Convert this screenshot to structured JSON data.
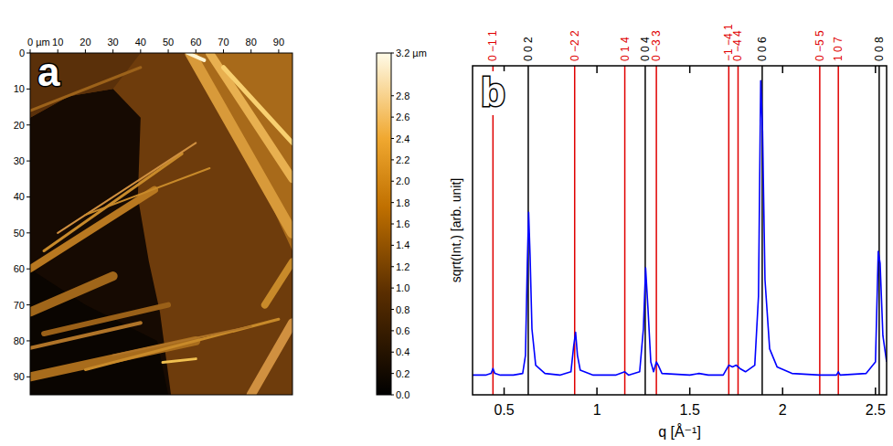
{
  "chart_data": [
    {
      "type": "image",
      "panel": "a",
      "xlim": [
        0,
        95
      ],
      "ylim": [
        0,
        95
      ],
      "xticks": [
        {
          "value": 0,
          "label": "0 µm"
        },
        10,
        20,
        30,
        40,
        50,
        60,
        70,
        80,
        90
      ],
      "yticks": [
        0,
        10,
        20,
        30,
        40,
        50,
        60,
        70,
        80,
        90
      ],
      "colorbar": {
        "range": [
          0,
          3.2
        ],
        "ticks": [
          {
            "value": 3.2,
            "label": "3.2 µm"
          },
          2.8,
          2.6,
          2.4,
          2.2,
          {
            "value": 2,
            "label": "2.0"
          },
          1.8,
          1.6,
          1.4,
          1.2,
          {
            "value": 1,
            "label": "1.0"
          },
          0.8,
          0.6,
          0.4,
          0.2,
          {
            "value": 0,
            "label": "0.0"
          }
        ]
      }
    },
    {
      "type": "line",
      "panel": "b",
      "x_label": "q [Å⁻¹]",
      "y_label": "sqrt(Int.) [arb. unit]",
      "xlim": [
        0.33,
        2.56
      ],
      "ylim": [
        0,
        1
      ],
      "xticks": [
        0.5,
        1,
        1.5,
        2,
        2.5
      ],
      "tick_labels": "x",
      "x": [
        0.33,
        0.4,
        0.43,
        0.44,
        0.45,
        0.48,
        0.55,
        0.6,
        0.615,
        0.625,
        0.632,
        0.64,
        0.65,
        0.67,
        0.72,
        0.8,
        0.86,
        0.875,
        0.885,
        0.895,
        0.91,
        0.98,
        1.1,
        1.15,
        1.17,
        1.23,
        1.25,
        1.262,
        1.275,
        1.29,
        1.305,
        1.32,
        1.33,
        1.35,
        1.5,
        1.55,
        1.6,
        1.68,
        1.71,
        1.73,
        1.75,
        1.77,
        1.8,
        1.85,
        1.87,
        1.882,
        1.892,
        1.905,
        1.93,
        1.97,
        2.05,
        2.2,
        2.29,
        2.3,
        2.31,
        2.45,
        2.5,
        2.515,
        2.525,
        2.54,
        2.56
      ],
      "series": [
        {
          "color": "#0000ff",
          "values": [
            0.06,
            0.06,
            0.065,
            0.08,
            0.065,
            0.06,
            0.06,
            0.065,
            0.12,
            0.4,
            0.555,
            0.42,
            0.2,
            0.09,
            0.065,
            0.06,
            0.07,
            0.15,
            0.19,
            0.12,
            0.075,
            0.06,
            0.06,
            0.07,
            0.06,
            0.07,
            0.2,
            0.386,
            0.26,
            0.1,
            0.07,
            0.1,
            0.09,
            0.065,
            0.06,
            0.065,
            0.06,
            0.06,
            0.09,
            0.085,
            0.09,
            0.08,
            0.07,
            0.09,
            0.3,
            0.955,
            0.8,
            0.35,
            0.14,
            0.085,
            0.065,
            0.06,
            0.06,
            0.07,
            0.06,
            0.065,
            0.1,
            0.436,
            0.4,
            0.18,
            0.1
          ]
        }
      ],
      "reflections": [
        {
          "label": "0 −1 1",
          "q": 0.44,
          "color": "#e00000"
        },
        {
          "label": "0 0 2",
          "q": 0.63,
          "color": "#000000"
        },
        {
          "label": "0 −2 2",
          "q": 0.88,
          "color": "#e00000"
        },
        {
          "label": "0 1 4",
          "q": 1.15,
          "color": "#e00000"
        },
        {
          "label": "0 0 4",
          "q": 1.26,
          "color": "#000000"
        },
        {
          "label": "0 −3 3",
          "q": 1.32,
          "color": "#e00000"
        },
        {
          "label": "−1 −4 1",
          "q": 1.71,
          "color": "#e00000"
        },
        {
          "label": "0 −4 4",
          "q": 1.76,
          "color": "#e00000"
        },
        {
          "label": "0 0 6",
          "q": 1.89,
          "color": "#000000"
        },
        {
          "label": "0 −5 5",
          "q": 2.2,
          "color": "#e00000"
        },
        {
          "label": "1 0 7",
          "q": 2.3,
          "color": "#e00000"
        },
        {
          "label": "0 0 8",
          "q": 2.52,
          "color": "#000000"
        }
      ]
    }
  ]
}
